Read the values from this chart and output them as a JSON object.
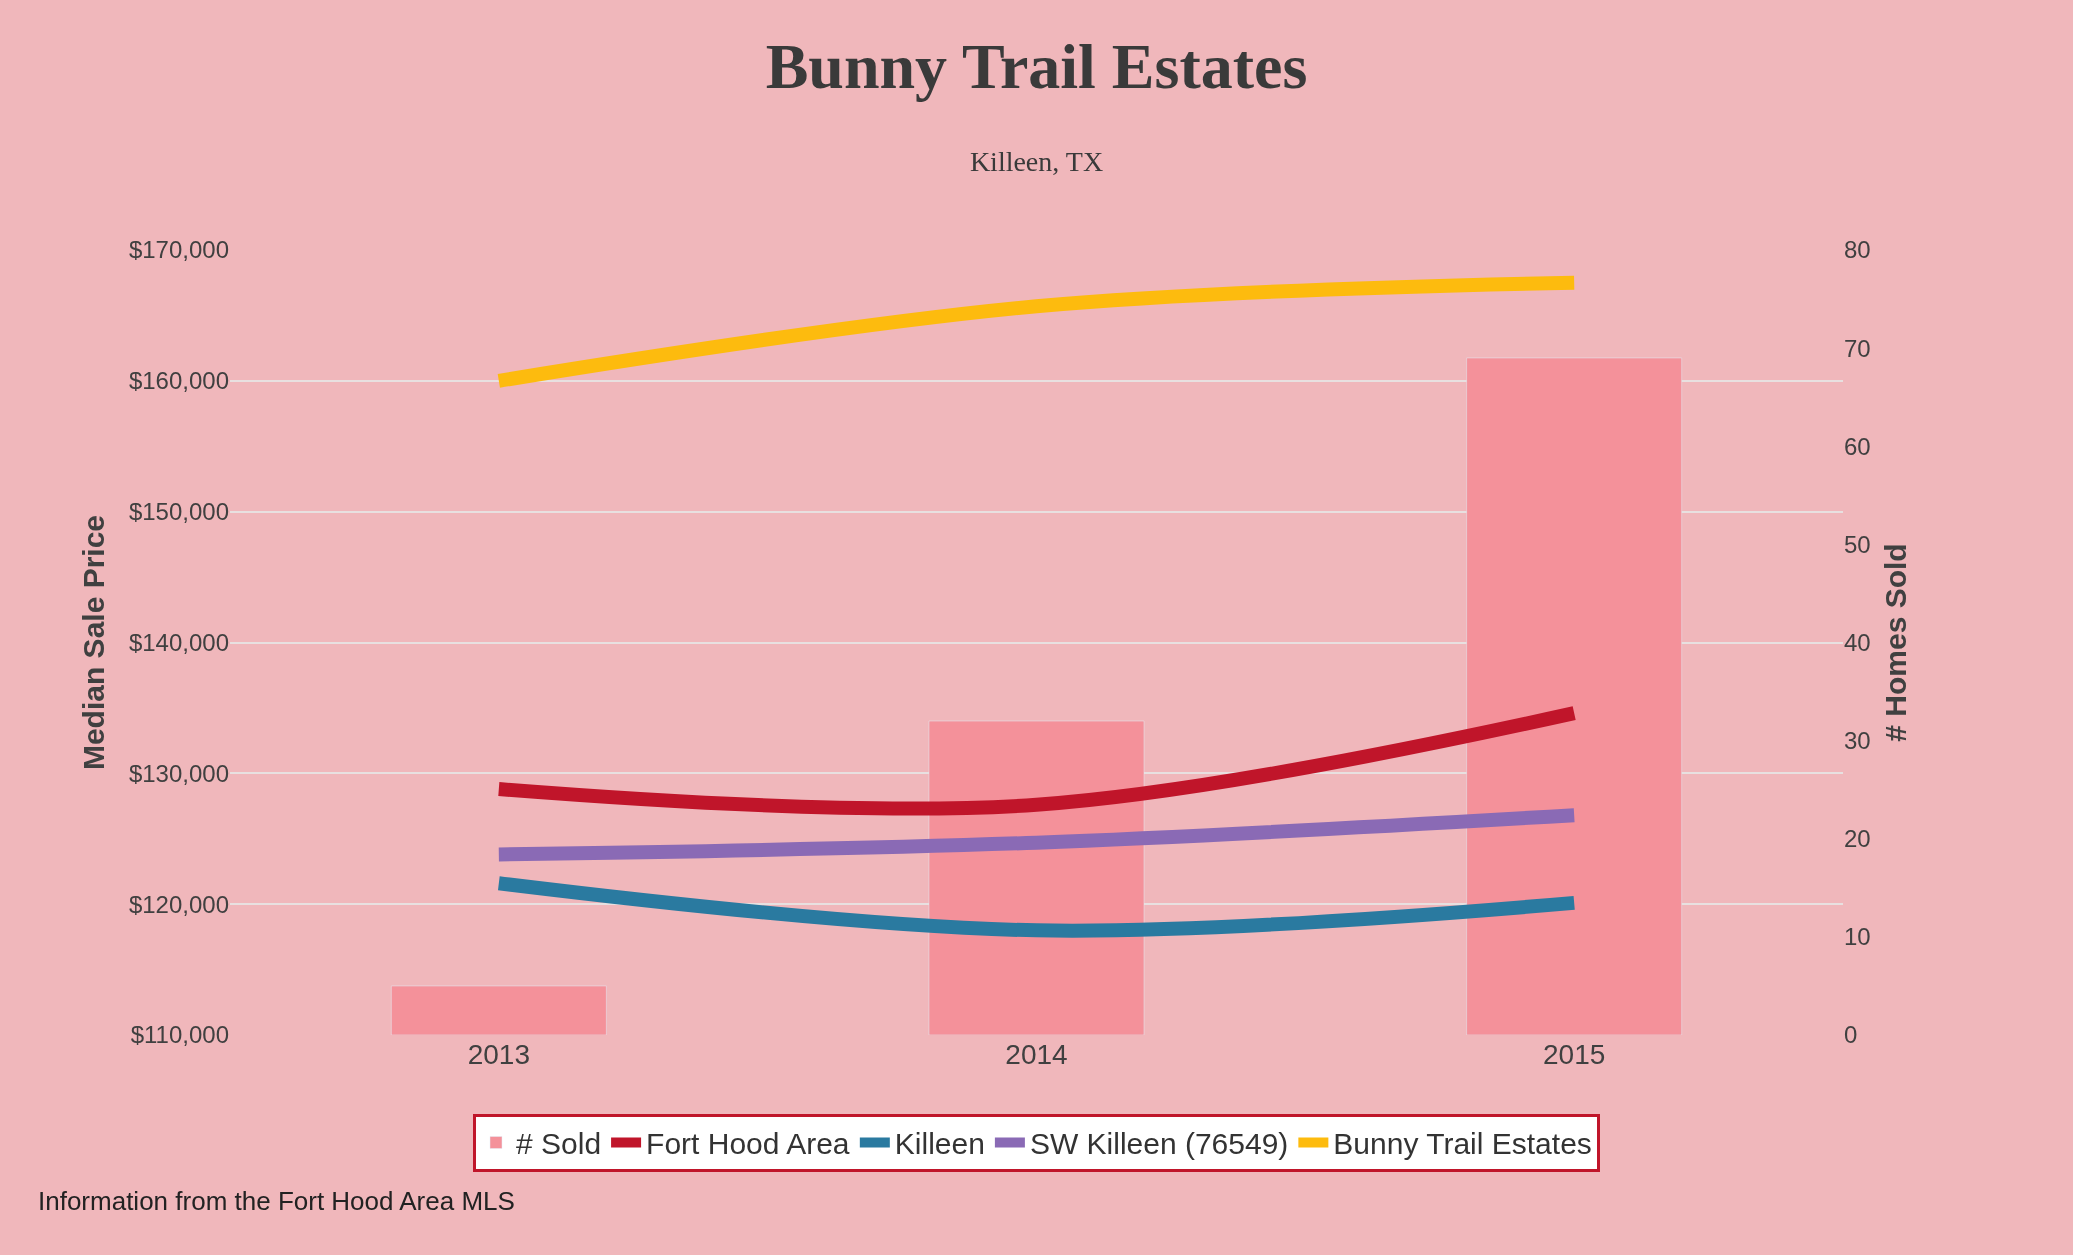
{
  "chart_data": {
    "type": "bar",
    "title": "Bunny Trail Estates",
    "subtitle": "Killeen, TX",
    "ylabel": "Median Sale Price",
    "y2label": "# Homes Sold",
    "categories": [
      "2013",
      "2014",
      "2015"
    ],
    "series": [
      {
        "name": "# Sold",
        "axis": "y2",
        "color": "#f4919a",
        "values": [
          5,
          32,
          69
        ]
      },
      {
        "name": "Fort Hood Area",
        "type": "line",
        "color": "#c0152a",
        "values": [
          128800,
          127600,
          134600
        ]
      },
      {
        "name": "Killeen",
        "type": "line",
        "color": "#2a7aa0",
        "values": [
          121600,
          118000,
          120100
        ]
      },
      {
        "name": "SW Killeen (76549)",
        "type": "line",
        "color": "#8a6ab5",
        "values": [
          123800,
          124700,
          126800
        ]
      },
      {
        "name": "Bunny Trail Estates",
        "type": "line",
        "color": "#fdbb0e",
        "values": [
          160000,
          165700,
          167500
        ]
      }
    ],
    "ylim": [
      110000,
      170000
    ],
    "yticks": [
      {
        "value": 110000,
        "label": "$110,000"
      },
      {
        "value": 120000,
        "label": "$120,000"
      },
      {
        "value": 130000,
        "label": "$130,000"
      },
      {
        "value": 140000,
        "label": "$140,000"
      },
      {
        "value": 150000,
        "label": "$150,000"
      },
      {
        "value": 160000,
        "label": "$160,000"
      },
      {
        "value": 170000,
        "label": "$170,000"
      }
    ],
    "y2lim": [
      0,
      80
    ],
    "y2ticks": [
      0,
      10,
      20,
      30,
      40,
      50,
      60,
      70,
      80
    ],
    "grid": "y",
    "legend": "bottom",
    "marker": "none",
    "line_style": "solid",
    "annotations": [
      "Information from the Fort Hood Area MLS"
    ]
  }
}
